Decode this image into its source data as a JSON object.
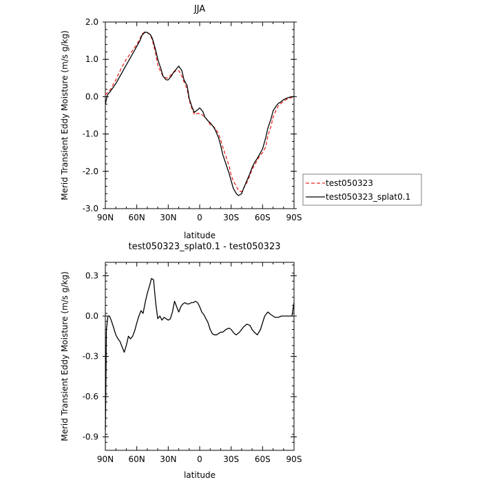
{
  "chart_data": [
    {
      "type": "line",
      "title": "JJA",
      "xlabel": "latitude",
      "ylabel": "Merid Transient Eddy Moisture (m/s g/kg)",
      "xlim": [
        90,
        -90
      ],
      "ylim": [
        -3.0,
        2.0
      ],
      "xticks": [
        90,
        60,
        30,
        0,
        -30,
        -60,
        -90
      ],
      "xtick_labels": [
        "90N",
        "60N",
        "30N",
        "0",
        "30S",
        "60S",
        "90S"
      ],
      "yticks": [
        -3.0,
        -2.0,
        -1.0,
        0.0,
        1.0,
        2.0
      ],
      "ytick_labels": [
        "-3.0",
        "-2.0",
        "-1.0",
        "0.0",
        "1.0",
        "2.0"
      ],
      "legend_position": "right",
      "series": [
        {
          "name": "test050323",
          "color": "#e8251f",
          "dash": "dashed",
          "x": [
            90,
            85,
            80,
            75,
            70,
            65,
            60,
            57,
            55,
            52,
            50,
            47,
            45,
            42,
            40,
            37,
            35,
            32,
            30,
            27,
            25,
            22,
            20,
            17,
            15,
            12,
            10,
            7,
            5,
            2,
            0,
            -3,
            -5,
            -8,
            -10,
            -13,
            -15,
            -18,
            -20,
            -22,
            -25,
            -28,
            -30,
            -32,
            -35,
            -37,
            -40,
            -42,
            -45,
            -48,
            -50,
            -52,
            -55,
            -57,
            -60,
            -63,
            -65,
            -68,
            -70,
            -73,
            -75,
            -78,
            -80,
            -83,
            -85,
            -88,
            -90
          ],
          "y": [
            0.05,
            0.2,
            0.45,
            0.75,
            1.0,
            1.2,
            1.4,
            1.55,
            1.68,
            1.74,
            1.72,
            1.65,
            1.5,
            1.15,
            0.85,
            0.65,
            0.55,
            0.5,
            0.5,
            0.6,
            0.65,
            0.7,
            0.7,
            0.55,
            0.4,
            0.2,
            -0.1,
            -0.35,
            -0.48,
            -0.45,
            -0.45,
            -0.5,
            -0.55,
            -0.65,
            -0.75,
            -0.8,
            -0.85,
            -1.0,
            -1.15,
            -1.35,
            -1.6,
            -1.85,
            -2.1,
            -2.25,
            -2.4,
            -2.52,
            -2.55,
            -2.45,
            -2.3,
            -2.1,
            -1.95,
            -1.85,
            -1.7,
            -1.6,
            -1.5,
            -1.35,
            -1.05,
            -0.8,
            -0.55,
            -0.35,
            -0.25,
            -0.17,
            -0.12,
            -0.07,
            -0.05,
            -0.02,
            0.0
          ]
        },
        {
          "name": "test050323_splat0.1",
          "color": "#000000",
          "dash": "solid",
          "x": [
            90,
            88,
            85,
            80,
            75,
            70,
            65,
            60,
            57,
            55,
            52,
            50,
            47,
            45,
            42,
            40,
            37,
            35,
            32,
            30,
            27,
            25,
            22,
            20,
            17,
            15,
            12,
            10,
            7,
            5,
            2,
            0,
            -3,
            -5,
            -8,
            -10,
            -13,
            -15,
            -18,
            -20,
            -22,
            -25,
            -28,
            -30,
            -32,
            -35,
            -37,
            -40,
            -42,
            -45,
            -48,
            -50,
            -52,
            -55,
            -57,
            -60,
            -63,
            -65,
            -68,
            -70,
            -73,
            -75,
            -78,
            -80,
            -83,
            -85,
            -88,
            -90
          ],
          "y": [
            -0.2,
            0.05,
            0.15,
            0.35,
            0.6,
            0.85,
            1.1,
            1.35,
            1.5,
            1.65,
            1.73,
            1.72,
            1.66,
            1.55,
            1.25,
            1.0,
            0.75,
            0.55,
            0.45,
            0.45,
            0.55,
            0.65,
            0.75,
            0.82,
            0.7,
            0.45,
            0.3,
            -0.05,
            -0.3,
            -0.42,
            -0.35,
            -0.3,
            -0.4,
            -0.55,
            -0.65,
            -0.7,
            -0.8,
            -0.9,
            -1.1,
            -1.3,
            -1.55,
            -1.8,
            -2.05,
            -2.25,
            -2.45,
            -2.6,
            -2.65,
            -2.6,
            -2.45,
            -2.25,
            -2.05,
            -1.9,
            -1.78,
            -1.65,
            -1.55,
            -1.4,
            -1.1,
            -0.85,
            -0.6,
            -0.38,
            -0.25,
            -0.18,
            -0.13,
            -0.08,
            -0.04,
            -0.02,
            0.0,
            0.0
          ]
        }
      ]
    },
    {
      "type": "line",
      "title": "test050323_splat0.1 - test050323",
      "xlabel": "latitude",
      "ylabel": "Merid Transient Eddy Moisture (m/s g/kg)",
      "xlim": [
        90,
        -90
      ],
      "ylim": [
        -1.0,
        0.4
      ],
      "xticks": [
        90,
        60,
        30,
        0,
        -30,
        -60,
        -90
      ],
      "xtick_labels": [
        "90N",
        "60N",
        "30N",
        "0",
        "30S",
        "60S",
        "90S"
      ],
      "yticks": [
        -0.9,
        -0.6,
        -0.3,
        0.0,
        0.3
      ],
      "ytick_labels": [
        "-0.9",
        "-0.6",
        "-0.3",
        "0.0",
        "0.3"
      ],
      "series": [
        {
          "name": "",
          "color": "#000000",
          "dash": "solid",
          "x": [
            90,
            89.5,
            89,
            87.5,
            86,
            84,
            82,
            80,
            78,
            76,
            74,
            72,
            70,
            68,
            66,
            64,
            62,
            60,
            58,
            56,
            54,
            52,
            50,
            48,
            46,
            44,
            42,
            40,
            38,
            36,
            34,
            32,
            30,
            28,
            26,
            24,
            22,
            20,
            18,
            16,
            14,
            12,
            10,
            8,
            6,
            4,
            2,
            0,
            -2,
            -4,
            -6,
            -8,
            -10,
            -12,
            -14,
            -16,
            -18,
            -20,
            -22,
            -25,
            -28,
            -30,
            -33,
            -35,
            -38,
            -40,
            -42,
            -45,
            -48,
            -50,
            -52,
            -55,
            -58,
            -60,
            -62,
            -65,
            -68,
            -70,
            -72,
            -75,
            -78,
            -80,
            -83,
            -85,
            -88,
            -90
          ],
          "y": [
            -0.85,
            -0.5,
            -0.1,
            0.0,
            0.0,
            -0.04,
            -0.09,
            -0.14,
            -0.17,
            -0.19,
            -0.23,
            -0.27,
            -0.22,
            -0.15,
            -0.17,
            -0.15,
            -0.11,
            -0.05,
            0.0,
            0.04,
            0.02,
            0.1,
            0.17,
            0.22,
            0.28,
            0.27,
            0.1,
            -0.02,
            0.0,
            -0.03,
            -0.01,
            -0.02,
            -0.03,
            -0.02,
            0.03,
            0.11,
            0.07,
            0.03,
            0.07,
            0.09,
            0.1,
            0.09,
            0.09,
            0.1,
            0.1,
            0.11,
            0.1,
            0.07,
            0.03,
            0.01,
            -0.02,
            -0.05,
            -0.1,
            -0.13,
            -0.14,
            -0.14,
            -0.13,
            -0.12,
            -0.12,
            -0.1,
            -0.09,
            -0.1,
            -0.13,
            -0.14,
            -0.12,
            -0.1,
            -0.08,
            -0.06,
            -0.07,
            -0.1,
            -0.12,
            -0.14,
            -0.1,
            -0.05,
            0.0,
            0.03,
            0.01,
            0.0,
            -0.01,
            -0.01,
            0.0,
            0.0,
            0.0,
            0.0,
            0.0,
            0.1
          ]
        }
      ]
    }
  ]
}
